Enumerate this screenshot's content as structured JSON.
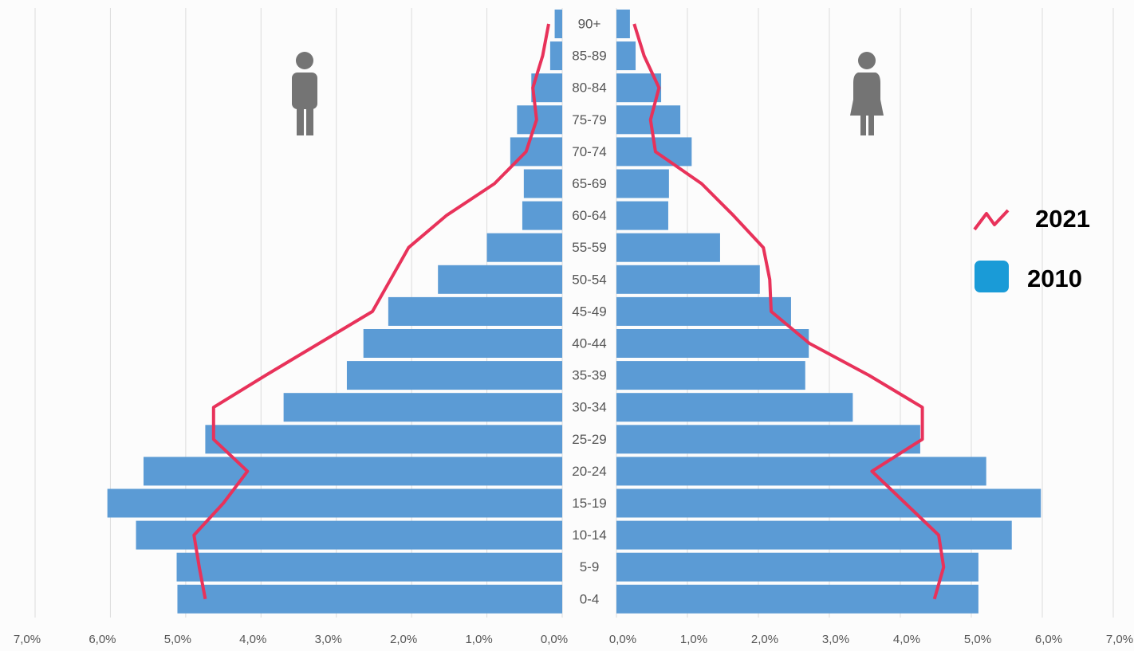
{
  "chart_data": {
    "type": "pyramid",
    "categories": [
      "90+",
      "85-89",
      "80-84",
      "75-79",
      "70-74",
      "65-69",
      "60-64",
      "55-59",
      "50-54",
      "45-49",
      "40-44",
      "35-39",
      "30-34",
      "25-29",
      "20-24",
      "15-19",
      "10-14",
      "5-9",
      "0-4"
    ],
    "legend": [
      {
        "name": "2021",
        "color": "#e8325a",
        "kind": "line"
      },
      {
        "name": "2010",
        "color": "#1a9bd7",
        "kind": "bar"
      }
    ],
    "bar_color": "#5b9bd5",
    "line_color": "#e8325a",
    "grid": true,
    "left": {
      "xlim": [
        0,
        7
      ],
      "xticks": [
        {
          "value": 0,
          "label": "0,0%"
        },
        {
          "value": 1,
          "label": "1,0%"
        },
        {
          "value": 2,
          "label": "2,0%"
        },
        {
          "value": 3,
          "label": "3,0%"
        },
        {
          "value": 4,
          "label": "4,0%"
        },
        {
          "value": 5,
          "label": "5,0%"
        },
        {
          "value": 6,
          "label": "6,0%"
        },
        {
          "value": 7,
          "label": "7,0%"
        }
      ],
      "bars": [
        0.1,
        0.16,
        0.41,
        0.6,
        0.69,
        0.51,
        0.53,
        1.0,
        1.65,
        2.31,
        2.64,
        2.86,
        3.7,
        4.74,
        5.56,
        6.04,
        5.66,
        5.12,
        5.11
      ],
      "line": [
        0.18,
        0.26,
        0.39,
        0.34,
        0.48,
        0.9,
        1.54,
        2.04,
        2.28,
        2.52,
        3.23,
        3.94,
        4.63,
        4.63,
        4.18,
        4.5,
        4.89,
        4.82,
        4.74
      ]
    },
    "right": {
      "xlim": [
        0,
        7
      ],
      "xticks": [
        {
          "value": 0,
          "label": "0,0%"
        },
        {
          "value": 1,
          "label": "1,0%"
        },
        {
          "value": 2,
          "label": "2,0%"
        },
        {
          "value": 3,
          "label": "3,0%"
        },
        {
          "value": 4,
          "label": "4,0%"
        },
        {
          "value": 5,
          "label": "5,0%"
        },
        {
          "value": 6,
          "label": "6,0%"
        },
        {
          "value": 7,
          "label": "7,0%"
        }
      ],
      "bars": [
        0.19,
        0.27,
        0.63,
        0.9,
        1.06,
        0.74,
        0.73,
        1.46,
        2.02,
        2.46,
        2.71,
        2.66,
        3.33,
        4.28,
        5.21,
        5.98,
        5.57,
        5.1,
        5.1
      ],
      "line": [
        0.25,
        0.39,
        0.6,
        0.48,
        0.55,
        1.2,
        1.65,
        2.07,
        2.16,
        2.18,
        2.72,
        3.56,
        4.31,
        4.31,
        3.6,
        4.07,
        4.54,
        4.61,
        4.48
      ]
    }
  }
}
